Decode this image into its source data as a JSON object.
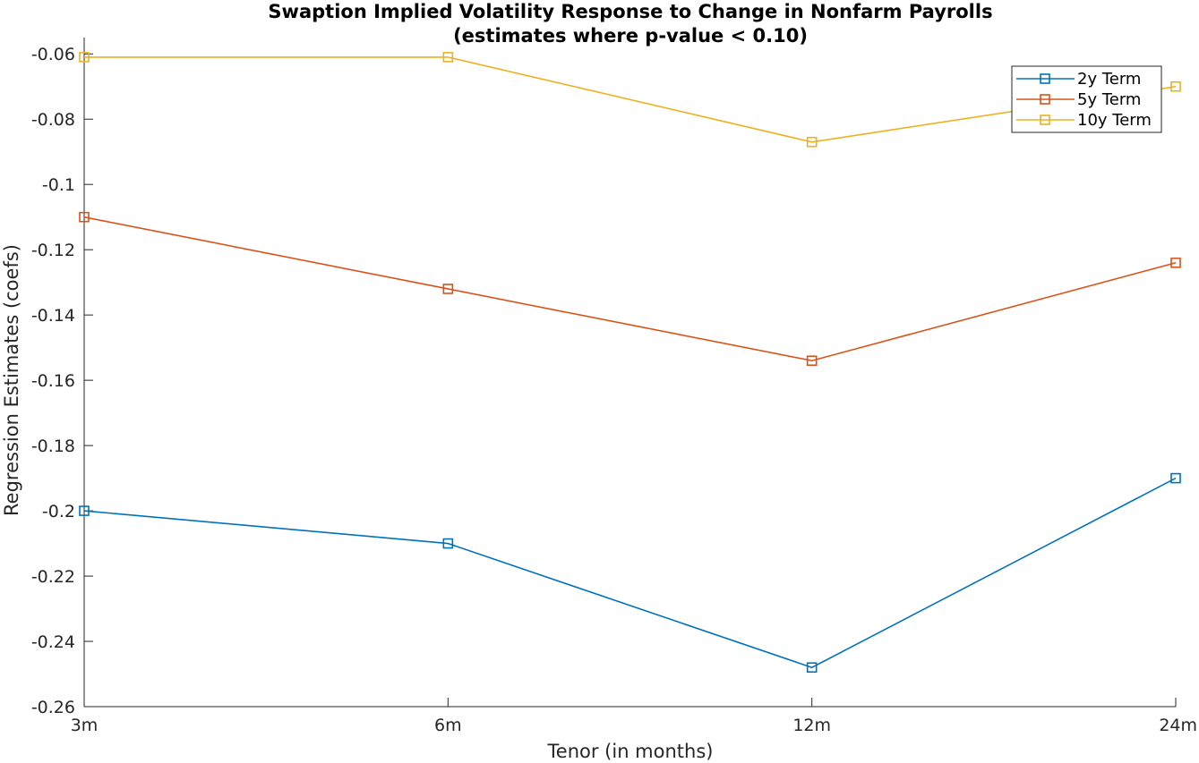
{
  "chart_data": {
    "type": "line",
    "title": [
      "Swaption Implied Volatility Response to Change in Nonfarm Payrolls",
      "(estimates where p-value < 0.10)"
    ],
    "xlabel": "Tenor (in months)",
    "ylabel": "Regression Estimates (coefs)",
    "categories": [
      "3m",
      "6m",
      "12m",
      "24m"
    ],
    "ylim": [
      -0.26,
      -0.055
    ],
    "yticks": [
      -0.26,
      -0.24,
      -0.22,
      -0.2,
      -0.18,
      -0.16,
      -0.14,
      -0.12,
      -0.1,
      -0.08,
      -0.06
    ],
    "ytick_labels": [
      "-0.26",
      "-0.24",
      "-0.22",
      "-0.2",
      "-0.18",
      "-0.16",
      "-0.14",
      "-0.12",
      "-0.1",
      "-0.08",
      "-0.06"
    ],
    "grid": false,
    "legend_position": "top-right",
    "marker": "square",
    "series": [
      {
        "name": "2y Term",
        "color": "#0072BD",
        "values": [
          -0.2,
          -0.21,
          -0.248,
          -0.19
        ]
      },
      {
        "name": "5y Term",
        "color": "#D95319",
        "values": [
          -0.11,
          -0.132,
          -0.154,
          -0.124
        ]
      },
      {
        "name": "10y Term",
        "color": "#EDB120",
        "values": [
          -0.061,
          -0.061,
          -0.087,
          -0.07
        ]
      }
    ]
  }
}
